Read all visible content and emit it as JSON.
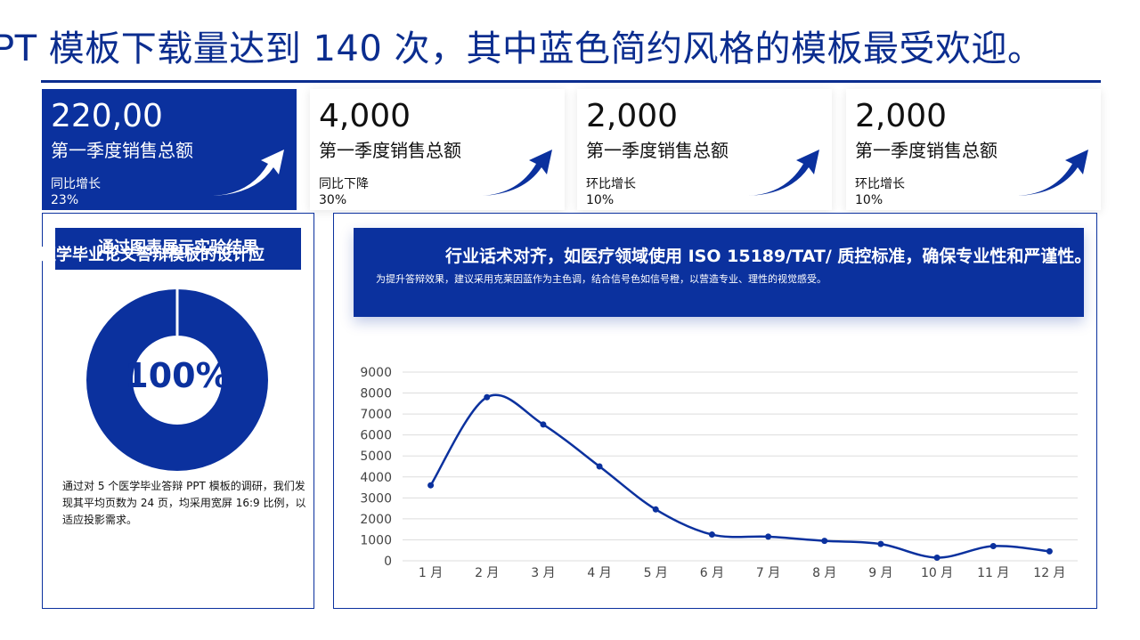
{
  "headline": "PT 模板下载量达到 140 次，其中蓝色简约风格的模板最受欢迎。",
  "colors": {
    "primary": "#0b319e",
    "text": "#111111",
    "grid": "#dddddd"
  },
  "kpis": [
    {
      "value": "220,00",
      "label": "第一季度销售总额",
      "sub": "同比增长",
      "pct": "23%",
      "icon": "up-arrow-icon"
    },
    {
      "value": "4,000",
      "label": "第一季度销售总额",
      "sub": "同比下降",
      "pct": "30%",
      "icon": "up-arrow-icon"
    },
    {
      "value": "2,000",
      "label": "第一季度销售总额",
      "sub": "环比增长",
      "pct": "10%",
      "icon": "up-arrow-icon"
    },
    {
      "value": "2,000",
      "label": "第一季度销售总额",
      "sub": "环比增长",
      "pct": "10%",
      "icon": "up-arrow-icon"
    }
  ],
  "left_panel": {
    "title": "通过图表展示实验结果",
    "overlap_text": "医学毕业论文答辩模板的设计应",
    "donut_value": "100%",
    "donut_fraction": 1.0,
    "description": "通过对 5 个医学毕业答辩 PPT 模板的调研，我们发现其平均页数为 24 页，均采用宽屏 16:9 比例，以适应投影需求。"
  },
  "right_panel": {
    "title": "行业话术对齐，如医疗领域使用 ISO 15189/TAT/ 质控标准，确保专业性和严谨性。",
    "subtitle": "为提升答辩效果，建议采用克莱因蓝作为主色调，结合信号色如信号橙，以营造专业、理性的视觉感受。"
  },
  "chart_data": {
    "type": "line",
    "categories": [
      "1 月",
      "2 月",
      "3 月",
      "4 月",
      "5 月",
      "6 月",
      "7 月",
      "8 月",
      "9 月",
      "10 月",
      "11 月",
      "12 月"
    ],
    "values": [
      3600,
      7800,
      6500,
      4500,
      2450,
      1250,
      1150,
      950,
      800,
      150,
      700,
      450
    ],
    "ylim": [
      0,
      9000
    ],
    "yticks": [
      0,
      1000,
      2000,
      3000,
      4000,
      5000,
      6000,
      7000,
      8000,
      9000
    ],
    "smooth": true,
    "grid": true,
    "title": "",
    "xlabel": "",
    "ylabel": ""
  }
}
